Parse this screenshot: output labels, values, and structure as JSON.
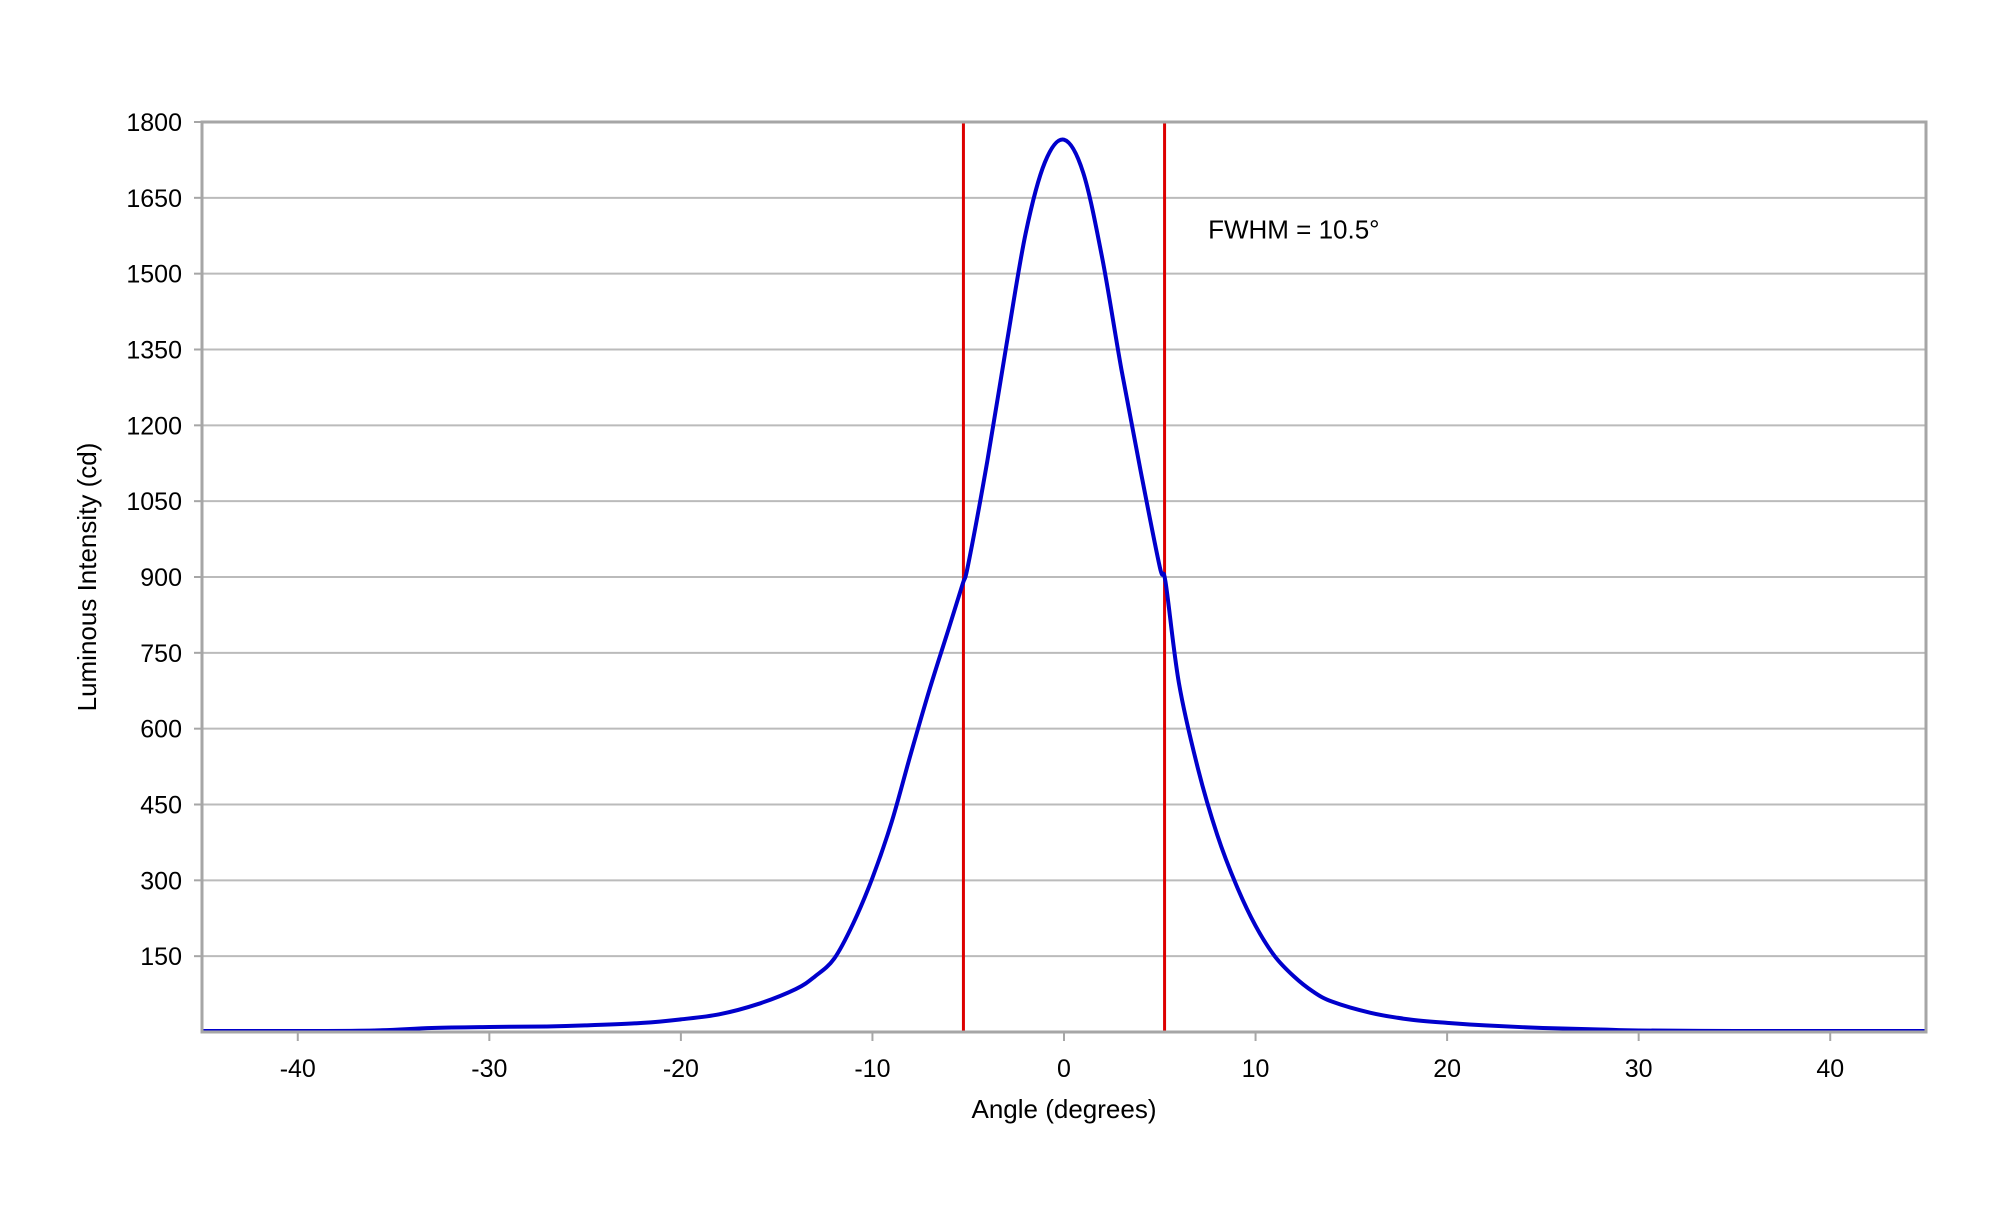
{
  "chart_data": {
    "type": "line",
    "title": "",
    "xlabel": "Angle (degrees)",
    "ylabel": "Luminous Intensity (cd)",
    "xlim": [
      -45,
      45
    ],
    "ylim": [
      0,
      1800
    ],
    "xticks": [
      -40,
      -30,
      -20,
      -10,
      0,
      10,
      20,
      30,
      40
    ],
    "yticks": [
      150,
      300,
      450,
      600,
      750,
      900,
      1050,
      1200,
      1350,
      1500,
      1650,
      1800
    ],
    "grid": "horizontal",
    "legend": "none",
    "series": [
      {
        "color": "#0000cc",
        "x": [
          -45,
          -40,
          -36,
          -33,
          -30,
          -27,
          -25,
          -22,
          -20,
          -18,
          -16,
          -14,
          -13,
          -12,
          -11,
          -10,
          -9,
          -8,
          -7,
          -6,
          -5.3,
          -5,
          -4,
          -3,
          -2,
          -1,
          0,
          1,
          2,
          3,
          4,
          5,
          5.3,
          6,
          7,
          8,
          9,
          10,
          11,
          12,
          13,
          14,
          16,
          18,
          20,
          22,
          25,
          28,
          30,
          35,
          40,
          45
        ],
        "y": [
          2,
          2,
          3,
          8,
          10,
          11,
          13,
          18,
          25,
          35,
          55,
          85,
          110,
          145,
          215,
          305,
          415,
          550,
          680,
          800,
          885,
          925,
          1130,
          1360,
          1580,
          1720,
          1765,
          1700,
          1530,
          1310,
          1110,
          920,
          890,
          690,
          520,
          390,
          290,
          210,
          150,
          110,
          80,
          60,
          38,
          25,
          18,
          13,
          8,
          5,
          3,
          2,
          2,
          2
        ]
      }
    ],
    "reference_lines": [
      {
        "x": -5.25,
        "color": "#dd0000"
      },
      {
        "x": 5.25,
        "color": "#dd0000"
      }
    ],
    "annotations": [
      {
        "text": "FWHM = 10.5°",
        "x": 7,
        "y": 1570
      }
    ]
  },
  "colors": {
    "curve": "#0000cc",
    "reference": "#dd0000",
    "grid": "#bbbbbb",
    "frame": "#a6a6a6"
  }
}
